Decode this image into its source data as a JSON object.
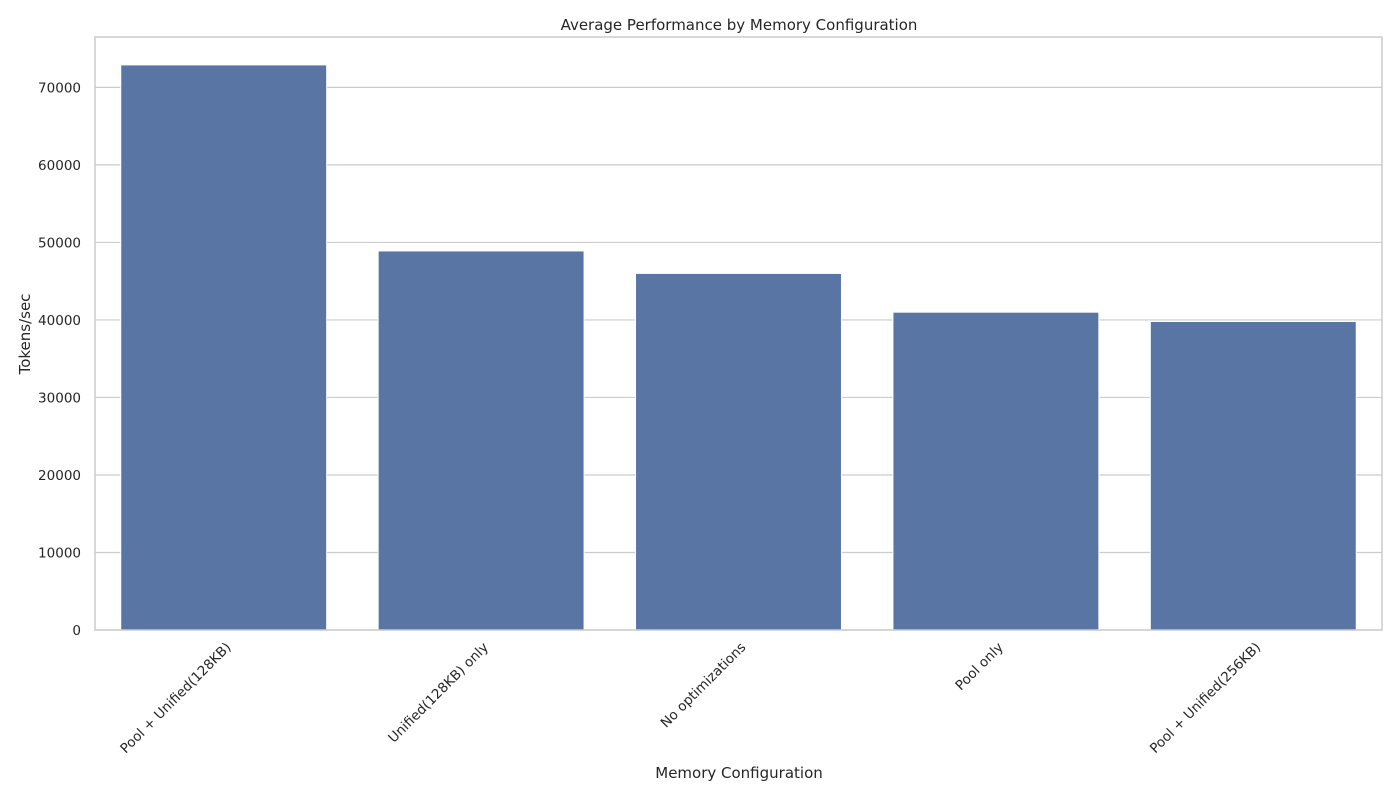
{
  "chart_data": {
    "type": "bar",
    "title": "Average Performance by Memory Configuration",
    "xlabel": "Memory Configuration",
    "ylabel": "Tokens/sec",
    "categories": [
      "Pool + Unified(128KB)",
      "Unified(128KB) only",
      "No optimizations",
      "Pool only",
      "Pool + Unified(256KB)"
    ],
    "values": [
      72900,
      48900,
      46000,
      41000,
      39800
    ],
    "ylim": [
      0,
      76500
    ],
    "yticks": [
      0,
      10000,
      20000,
      30000,
      40000,
      50000,
      60000,
      70000
    ],
    "ytick_labels": [
      "0",
      "10000",
      "20000",
      "30000",
      "40000",
      "50000",
      "60000",
      "70000"
    ],
    "x_tick_rotation_deg": 45,
    "grid": "horizontal",
    "bar_color": "#5875a4"
  }
}
